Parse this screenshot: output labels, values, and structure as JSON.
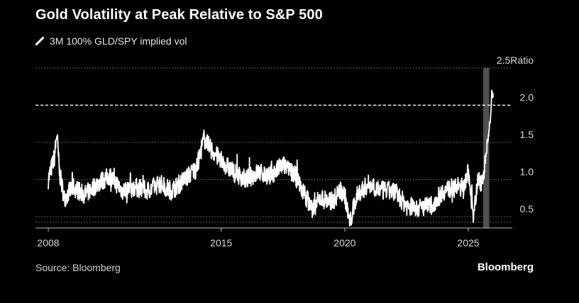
{
  "chart_data": {
    "type": "line",
    "title": "Gold Volatility at Peak Relative to S&P 500",
    "series": [
      {
        "name": "3M 100% GLD/SPY implied vol",
        "color": "#ffffff"
      }
    ],
    "ylabel": "Ratio",
    "ylim": [
      0.35,
      2.5
    ],
    "yticks": [
      2.5,
      2.0,
      1.5,
      1.0,
      0.5
    ],
    "ytick_labels": [
      "2.5",
      "2.0",
      "1.5",
      "1.0",
      "0.5"
    ],
    "y_unit_label": "Ratio",
    "xlim": [
      2008.0,
      2026.6
    ],
    "xticks": [
      2008,
      2015,
      2020,
      2025
    ],
    "xtick_labels": [
      "2008",
      "2015",
      "2020",
      "2025"
    ],
    "reference_line": {
      "value": 2.0,
      "style": "dashed"
    },
    "highlight_band": {
      "x0": 2025.6,
      "x1": 2025.85
    },
    "anchor_points": [
      [
        2008.0,
        1.0
      ],
      [
        2008.25,
        1.3
      ],
      [
        2008.35,
        1.62
      ],
      [
        2008.45,
        1.1
      ],
      [
        2008.65,
        0.75
      ],
      [
        2009.0,
        0.9
      ],
      [
        2009.5,
        0.8
      ],
      [
        2010.0,
        0.95
      ],
      [
        2010.5,
        1.05
      ],
      [
        2011.0,
        0.85
      ],
      [
        2011.5,
        0.9
      ],
      [
        2012.0,
        0.85
      ],
      [
        2012.5,
        0.95
      ],
      [
        2013.0,
        0.85
      ],
      [
        2013.5,
        1.0
      ],
      [
        2014.0,
        1.15
      ],
      [
        2014.3,
        1.55
      ],
      [
        2014.6,
        1.4
      ],
      [
        2015.0,
        1.25
      ],
      [
        2015.5,
        1.1
      ],
      [
        2016.0,
        1.0
      ],
      [
        2016.5,
        1.1
      ],
      [
        2017.0,
        1.05
      ],
      [
        2017.5,
        1.2
      ],
      [
        2018.0,
        1.05
      ],
      [
        2018.3,
        0.85
      ],
      [
        2018.7,
        0.6
      ],
      [
        2019.0,
        0.75
      ],
      [
        2019.5,
        0.7
      ],
      [
        2019.8,
        0.85
      ],
      [
        2020.0,
        0.8
      ],
      [
        2020.2,
        0.4
      ],
      [
        2020.5,
        0.8
      ],
      [
        2021.0,
        0.95
      ],
      [
        2021.5,
        0.85
      ],
      [
        2022.0,
        0.85
      ],
      [
        2022.5,
        0.65
      ],
      [
        2023.0,
        0.62
      ],
      [
        2023.5,
        0.65
      ],
      [
        2024.0,
        0.85
      ],
      [
        2024.5,
        0.9
      ],
      [
        2024.8,
        0.9
      ],
      [
        2025.0,
        1.1
      ],
      [
        2025.2,
        0.55
      ],
      [
        2025.4,
        1.0
      ],
      [
        2025.55,
        0.95
      ],
      [
        2025.7,
        1.25
      ],
      [
        2025.8,
        1.55
      ],
      [
        2025.9,
        1.85
      ],
      [
        2025.95,
        2.18
      ],
      [
        2026.0,
        2.1
      ]
    ],
    "annotations": [
      "Source: Bloomberg",
      "Bloomberg"
    ]
  }
}
